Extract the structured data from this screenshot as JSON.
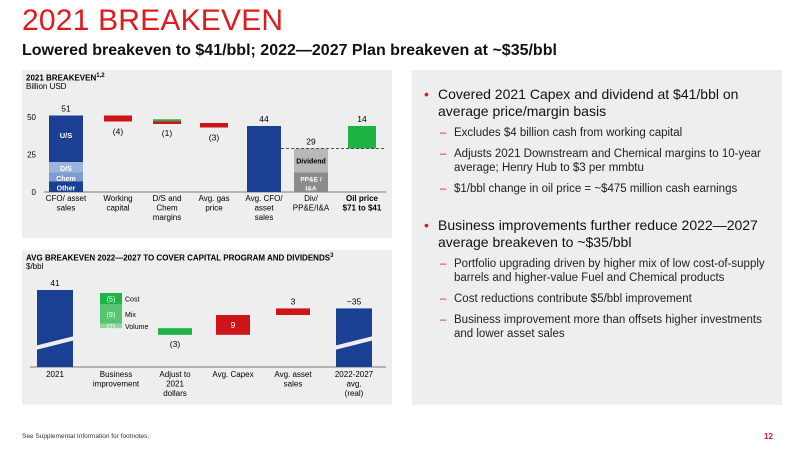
{
  "header": {
    "title": "2021 BREAKEVEN",
    "subtitle": "Lowered breakeven to $41/bbl; 2022—2027 Plan breakeven at ~$35/bbl"
  },
  "colors": {
    "accent": "#e0191e",
    "navy": "#1b3f93",
    "green": "#1db345",
    "red": "#cc1419",
    "gray": "#9b9b9b",
    "light_blue": "#9db5da"
  },
  "chart_data": [
    {
      "type": "bar",
      "title": "2021 BREAKEVEN",
      "title_sup": "1,2",
      "ylabel": "Billion USD",
      "ylim": [
        0,
        55
      ],
      "yticks": [
        "0",
        "25",
        "50"
      ],
      "categories": [
        "CFO/ asset sales",
        "Working capital",
        "D/S and Chem margins",
        "Avg. gas price",
        "Avg. CFO/ asset sales",
        "Div/ PP&E/I&A",
        "Oil price $71 to $41"
      ],
      "values": [
        51,
        -4,
        -1,
        -3,
        44,
        29,
        14
      ],
      "value_labels": [
        "51",
        "(4)",
        "(1)",
        "(3)",
        "44",
        "29",
        "14"
      ],
      "stack_labels": {
        "us": "U/S",
        "ds": "D/S",
        "chem": "Chem",
        "other": "Other",
        "dividend": "Dividend",
        "ppe": "PP&E / I&A"
      },
      "reference_line": 29
    },
    {
      "type": "bar",
      "title": "AVG BREAKEVEN 2022—2027 TO COVER CAPITAL PROGRAM AND DIVIDENDS",
      "title_sup": "3",
      "ylabel": "$/bbl",
      "categories": [
        "2021",
        "Business improvement",
        "Adjust to 2021 dollars",
        "Avg. Capex",
        "Avg. asset sales",
        "2022-2027 avg. (real)"
      ],
      "values": [
        41,
        -16,
        -3,
        9,
        3,
        35
      ],
      "value_labels": [
        "41",
        "",
        "(3)",
        "9",
        "3",
        "~35"
      ],
      "business_improvement_parts": [
        {
          "name": "Cost",
          "label": "(5)",
          "value": -5
        },
        {
          "name": "Mix",
          "label": "(9)",
          "value": -9
        },
        {
          "name": "Volume",
          "label": "(2)",
          "value": -2
        }
      ]
    }
  ],
  "bullets": [
    {
      "text": "Covered 2021 Capex and dividend at $41/bbl on average price/margin basis",
      "subs": [
        "Excludes $4 billion cash from working capital",
        "Adjusts 2021 Downstream and Chemical margins to 10-year average; Henry Hub to $3 per mmbtu",
        "$1/bbl change in oil price = ~$475 million cash earnings"
      ]
    },
    {
      "text": "Business improvements further reduce 2022—2027 average breakeven to ~$35/bbl",
      "subs": [
        "Portfolio upgrading driven by higher mix of low cost-of-supply barrels and higher-value Fuel and Chemical products",
        "Cost reductions contribute $5/bbl improvement",
        "Business improvement more than offsets higher investments and lower asset sales"
      ]
    }
  ],
  "footer": {
    "note": "See Supplemental Information for footnotes.",
    "page": "12"
  }
}
